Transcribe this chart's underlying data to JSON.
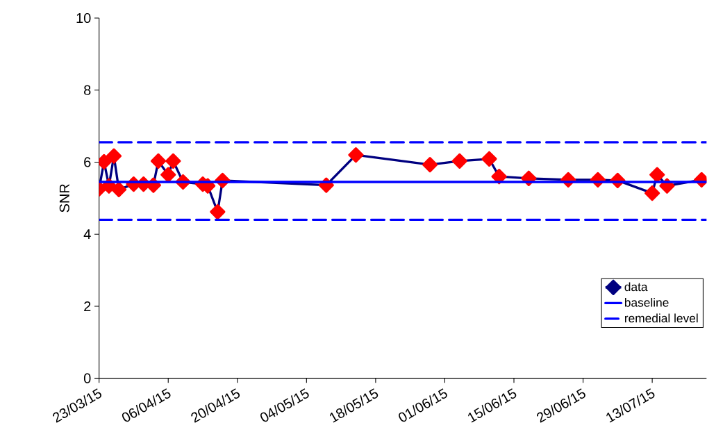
{
  "chart_data": {
    "type": "line",
    "ylabel": "SNR",
    "x": [
      "2015-03-23",
      "2015-03-24",
      "2015-03-25",
      "2015-03-26",
      "2015-03-27",
      "2015-03-30",
      "2015-04-01",
      "2015-04-03",
      "2015-04-04",
      "2015-04-06",
      "2015-04-07",
      "2015-04-09",
      "2015-04-13",
      "2015-04-14",
      "2015-04-16",
      "2015-04-17",
      "2015-05-08",
      "2015-05-14",
      "2015-05-29",
      "2015-06-04",
      "2015-06-10",
      "2015-06-12",
      "2015-06-18",
      "2015-06-26",
      "2015-07-02",
      "2015-07-06",
      "2015-07-13",
      "2015-07-14",
      "2015-07-16",
      "2015-07-23"
    ],
    "series": [
      {
        "name": "data",
        "color": "#000080",
        "colors": [
          "#ff0000",
          "#ff0000",
          "#ff0000",
          "#ff0000",
          "#ff0000",
          "#ff0000",
          "#ff0000",
          "#ff0000",
          "#ff0000",
          "#ff0000",
          "#ff0000",
          "#ff0000",
          "#ff0000",
          "#ff0000",
          "#ff0000",
          "#ff0000",
          "#ff0000",
          "#ff0000",
          "#ff0000",
          "#ff0000",
          "#ff0000",
          "#ff0000",
          "#ff0000",
          "#ff0000",
          "#ff0000",
          "#ff0000",
          "#ff0000",
          "#ff0000",
          "#ff0000",
          "#ff0000"
        ],
        "values": [
          5.26,
          6.01,
          5.34,
          6.17,
          5.24,
          5.39,
          5.39,
          5.36,
          6.03,
          5.65,
          6.03,
          5.45,
          5.39,
          5.34,
          4.62,
          5.49,
          5.36,
          6.2,
          5.93,
          6.03,
          6.09,
          5.6,
          5.55,
          5.51,
          5.51,
          5.49,
          5.14,
          5.65,
          5.34,
          5.51
        ]
      }
    ],
    "ref_lines": [
      {
        "axis": "y",
        "value": 5.45,
        "label": "baseline",
        "color": "#0000ff",
        "line_style": "solid"
      },
      {
        "axis": "y",
        "value": 6.55,
        "label": "remedial level",
        "color": "#0000ff",
        "line_style": "dashed"
      },
      {
        "axis": "y",
        "value": 4.4,
        "color": "#0000ff",
        "line_style": "dashed"
      }
    ],
    "xlim": [
      "2015-03-23",
      "2015-07-24"
    ],
    "xticks": [
      {
        "value": "2015-03-23",
        "label": "23/03/15"
      },
      {
        "value": "2015-04-06",
        "label": "06/04/15"
      },
      {
        "value": "2015-04-20",
        "label": "20/04/15"
      },
      {
        "value": "2015-05-04",
        "label": "04/05/15"
      },
      {
        "value": "2015-05-18",
        "label": "18/05/15"
      },
      {
        "value": "2015-06-01",
        "label": "01/06/15"
      },
      {
        "value": "2015-06-15",
        "label": "15/06/15"
      },
      {
        "value": "2015-06-29",
        "label": "29/06/15"
      },
      {
        "value": "2015-07-13",
        "label": "13/07/15"
      }
    ],
    "ylim": [
      0,
      10
    ],
    "yticks": [
      0,
      2,
      4,
      6,
      8,
      10
    ],
    "grid": false,
    "legend": "bottom right",
    "marker": "diamond",
    "line_style": "solid"
  }
}
